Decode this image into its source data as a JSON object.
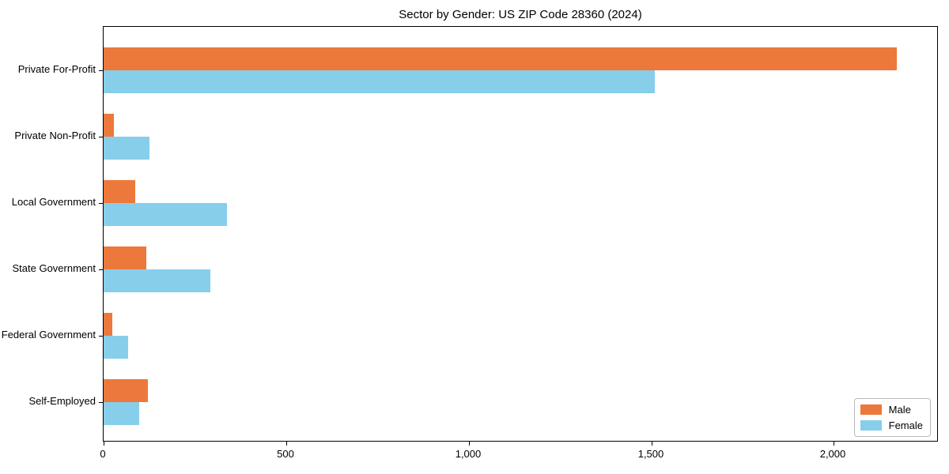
{
  "title": "Sector by Gender: US ZIP Code 28360 (2024)",
  "colors": {
    "male": "#EC793B",
    "female": "#87CEEB",
    "frame": "#000000",
    "text": "#000000",
    "legend_border": "#b9b9b9"
  },
  "chart_data": {
    "type": "bar",
    "orientation": "horizontal",
    "title": "Sector by Gender: US ZIP Code 28360 (2024)",
    "categories": [
      "Private For-Profit",
      "Private Non-Profit",
      "Local Government",
      "State Government",
      "Federal Government",
      "Self-Employed"
    ],
    "series": [
      {
        "name": "Male",
        "color": "#EC793B",
        "values": [
          2173,
          28,
          86,
          117,
          24,
          121
        ]
      },
      {
        "name": "Female",
        "color": "#87CEEB",
        "values": [
          1509,
          125,
          337,
          292,
          67,
          97
        ]
      }
    ],
    "xlabel": "",
    "ylabel": "",
    "xlim": [
      0,
      2283
    ],
    "xticks": [
      {
        "value": 0,
        "label": "0"
      },
      {
        "value": 500,
        "label": "500"
      },
      {
        "value": 1000,
        "label": "1,000"
      },
      {
        "value": 1500,
        "label": "1,500"
      },
      {
        "value": 2000,
        "label": "2,000"
      }
    ],
    "grid": false,
    "legend": {
      "position": "lower-right",
      "entries": [
        "Male",
        "Female"
      ]
    }
  }
}
